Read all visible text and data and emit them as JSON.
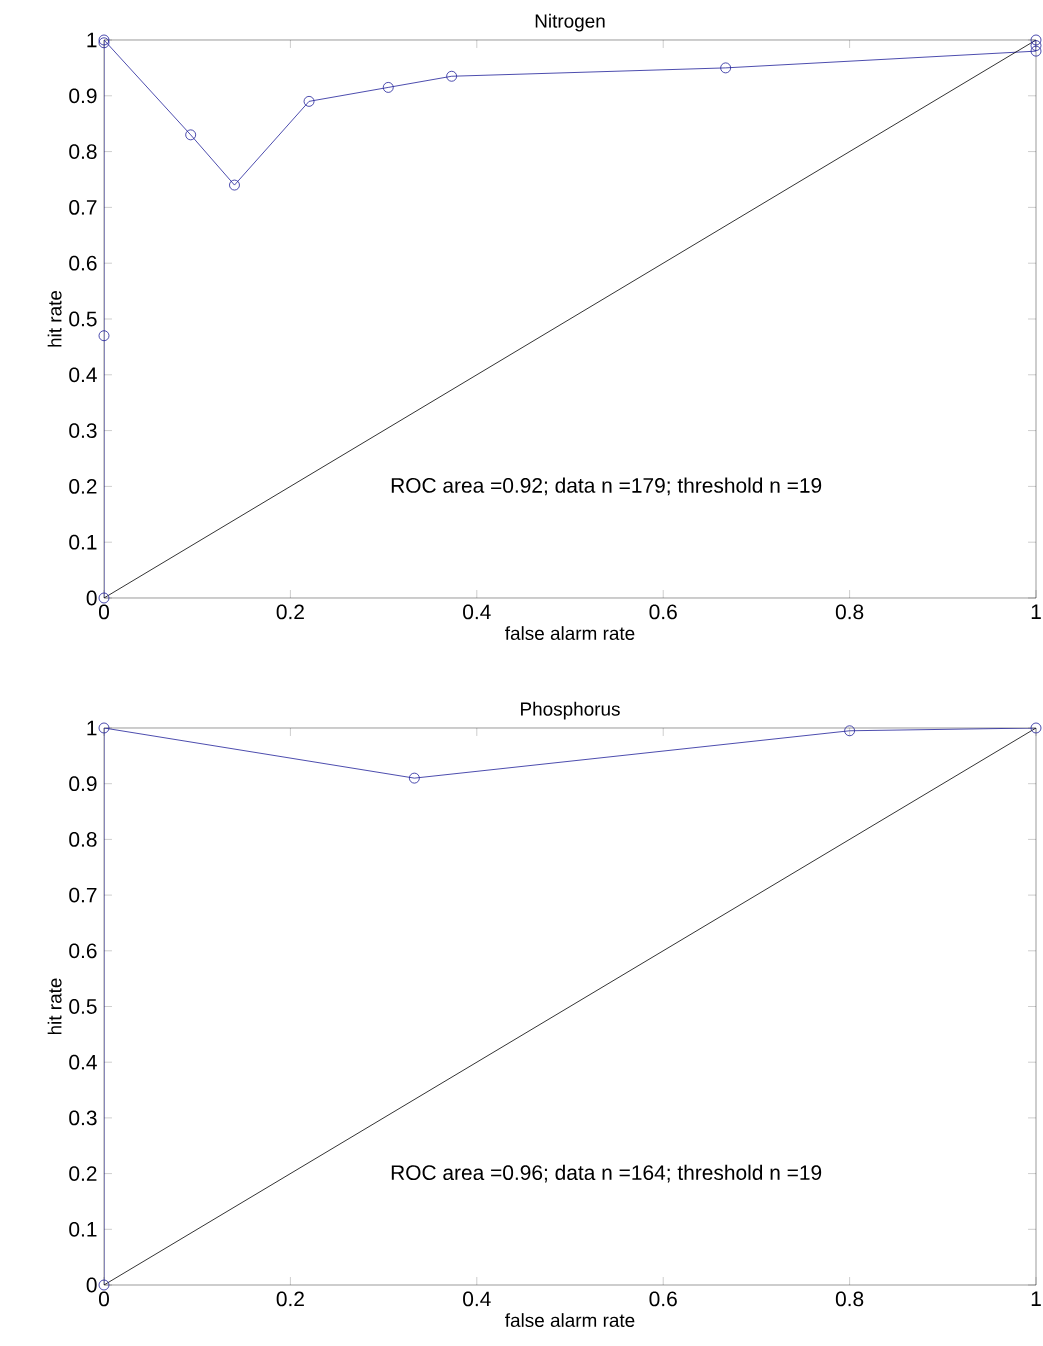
{
  "chart_data": [
    {
      "type": "line",
      "title": "Nitrogen",
      "xlabel": "false alarm rate",
      "ylabel": "hit rate",
      "xlim": [
        0,
        1
      ],
      "ylim": [
        0,
        1
      ],
      "xticks": [
        0,
        0.2,
        0.4,
        0.6,
        0.8,
        1
      ],
      "yticks": [
        0,
        0.1,
        0.2,
        0.3,
        0.4,
        0.5,
        0.6,
        0.7,
        0.8,
        0.9,
        1
      ],
      "annotations": [
        "ROC area =0.92; data n =179; threshold n =19"
      ],
      "series": [
        {
          "color": "#1f1f99",
          "marker": "circle",
          "x": [
            0,
            0,
            0,
            0,
            0.093,
            0.14,
            0.22,
            0.305,
            0.373,
            0.667,
            1,
            1,
            1
          ],
          "values": [
            0,
            0.47,
            0.995,
            1,
            0.83,
            0.74,
            0.89,
            0.915,
            0.935,
            0.95,
            0.98,
            0.99,
            1
          ]
        },
        {
          "color": "#000000",
          "marker": "none",
          "x": [
            0,
            1
          ],
          "values": [
            0,
            1
          ]
        }
      ]
    },
    {
      "type": "line",
      "title": "Phosphorus",
      "xlabel": "false alarm rate",
      "ylabel": "hit rate",
      "xlim": [
        0,
        1
      ],
      "ylim": [
        0,
        1
      ],
      "xticks": [
        0,
        0.2,
        0.4,
        0.6,
        0.8,
        1
      ],
      "yticks": [
        0,
        0.1,
        0.2,
        0.3,
        0.4,
        0.5,
        0.6,
        0.7,
        0.8,
        0.9,
        1
      ],
      "annotations": [
        "ROC area =0.96; data n =164; threshold n =19"
      ],
      "series": [
        {
          "color": "#1f1f99",
          "marker": "circle",
          "x": [
            0,
            0,
            0.333,
            0.8,
            1
          ],
          "values": [
            0,
            1,
            0.91,
            0.995,
            1
          ]
        },
        {
          "color": "#000000",
          "marker": "none",
          "x": [
            0,
            1
          ],
          "values": [
            0,
            1
          ]
        }
      ]
    }
  ]
}
